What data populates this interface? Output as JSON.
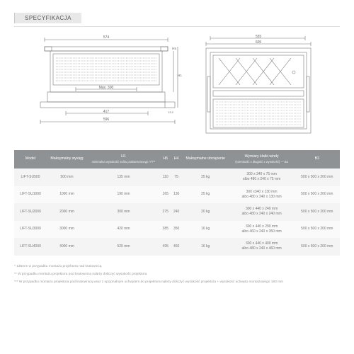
{
  "header": {
    "title": "SPECYFIKACJA"
  },
  "diagram_left": {
    "dims": [
      "574",
      "Max. 300",
      "417",
      "596",
      "H5",
      "H1",
      "13.2"
    ],
    "stroke": "#888888"
  },
  "diagram_right": {
    "dims": [
      "555",
      "605"
    ],
    "stroke": "#888888"
  },
  "table": {
    "headers": [
      {
        "label": "Model"
      },
      {
        "label": "Maksymalny wysięg"
      },
      {
        "label": "H1",
        "sub": "minimalna wysokość sufitu podwieszonego */*/**"
      },
      {
        "label": "H5"
      },
      {
        "label": "H4"
      },
      {
        "label": "Maksymalne obciążenie"
      },
      {
        "label": "Wymiary klatki windy",
        "sub": "(szerokość x długość x wysokość) — B2"
      },
      {
        "label": "B3"
      }
    ],
    "rows": [
      {
        "model": "LIFT-SU500",
        "reach": "500 mm",
        "h1": "135 mm",
        "h5": "110",
        "h4": "75",
        "load": "25 kg",
        "b2": "300 x 340 x 75 mm\nalbo 480 x 240 x 75 mm",
        "b3": "500 x 500 x 200 mm"
      },
      {
        "model": "LIFT-SU1000",
        "reach": "1000 mm",
        "h1": "190 mm",
        "h5": "165",
        "h4": "130",
        "load": "25 kg",
        "b2": "300 x340 x 130 mm\nalbo 480 x 240 x 130 mm",
        "b3": "500 x 500 x 200 mm"
      },
      {
        "model": "LIFT-SU2000",
        "reach": "2000 mm",
        "h1": "300 mm",
        "h5": "275",
        "h4": "240",
        "load": "20 kg",
        "b2": "300 x 440 x 240 mm\nalbo 480 x 240 x 240 mm",
        "b3": "500 x 500 x 200 mm"
      },
      {
        "model": "LIFT-SU3000",
        "reach": "3000 mm",
        "h1": "420 mm",
        "h5": "385",
        "h4": "350",
        "load": "16 kg",
        "b2": "300 x 440 x 290 mm\nalbo 460 x 240 x 350 mm",
        "b3": "500 x 500 x 200 mm"
      },
      {
        "model": "LIFT-SU4000",
        "reach": "4000 mm",
        "h1": "520 mm",
        "h5": "495",
        "h4": "460",
        "load": "16 kg",
        "b2": "300 x 440 x 400 mm\nalbo 480 x 240 x 460 mm",
        "b3": "500 x 500 x 200 mm"
      }
    ]
  },
  "notes": [
    "* 135mm w przypadku montażu projektora nad kratownicą",
    "** W przypadku montażu projektora pod kratownicą należy doliczyć wysokość projektora",
    "*** W przypadku montażu projektora pod kratownicą wraz z opcjonalnym uchwytem do projektora należy doliczyć wysokość projektora + wysokość uchwytu montażowego 180 mm"
  ]
}
